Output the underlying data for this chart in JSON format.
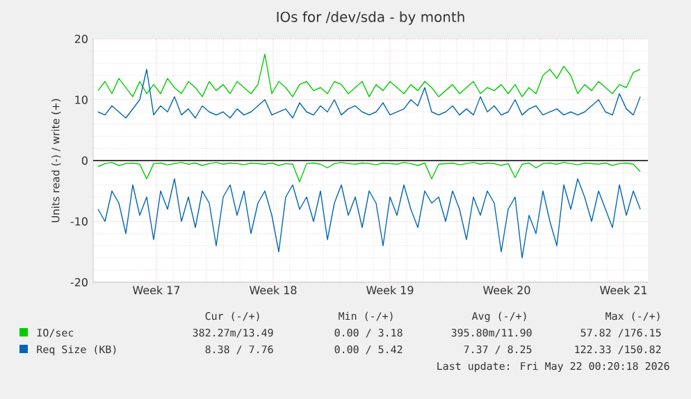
{
  "chart_data": {
    "type": "line",
    "title": "IOs for /dev/sda - by month",
    "ylabel": "Units read (-) / write (+)",
    "xlim": [
      "2026-04-16T05:00",
      "2026-05-19T11:00"
    ],
    "xticks": [
      {
        "value": "2026-04-20",
        "label": "Week 17"
      },
      {
        "value": "2026-04-27",
        "label": "Week 18"
      },
      {
        "value": "2026-05-04",
        "label": "Week 19"
      },
      {
        "value": "2026-05-11",
        "label": "Week 20"
      },
      {
        "value": "2026-05-18",
        "label": "Week 21"
      }
    ],
    "ylim": [
      -20,
      20
    ],
    "yticks": [
      -20,
      -10,
      0,
      10,
      20
    ],
    "grid": true,
    "legend": "bottom",
    "line_style": "solid",
    "x": [
      "2026-04-16T12:00",
      "2026-04-16T22:00",
      "2026-04-17T08:00",
      "2026-04-17T18:00",
      "2026-04-18T04:00",
      "2026-04-18T14:00",
      "2026-04-19T00:00",
      "2026-04-19T10:00",
      "2026-04-19T20:00",
      "2026-04-20T06:00",
      "2026-04-20T16:00",
      "2026-04-21T02:00",
      "2026-04-21T12:00",
      "2026-04-21T22:00",
      "2026-04-22T08:00",
      "2026-04-22T18:00",
      "2026-04-23T04:00",
      "2026-04-23T14:00",
      "2026-04-24T00:00",
      "2026-04-24T10:00",
      "2026-04-24T20:00",
      "2026-04-25T06:00",
      "2026-04-25T16:00",
      "2026-04-26T02:00",
      "2026-04-26T12:00",
      "2026-04-26T22:00",
      "2026-04-27T08:00",
      "2026-04-27T18:00",
      "2026-04-28T04:00",
      "2026-04-28T14:00",
      "2026-04-29T00:00",
      "2026-04-29T10:00",
      "2026-04-29T20:00",
      "2026-04-30T06:00",
      "2026-04-30T16:00",
      "2026-05-01T02:00",
      "2026-05-01T12:00",
      "2026-05-01T22:00",
      "2026-05-02T08:00",
      "2026-05-02T18:00",
      "2026-05-03T04:00",
      "2026-05-03T14:00",
      "2026-05-04T00:00",
      "2026-05-04T10:00",
      "2026-05-04T20:00",
      "2026-05-05T06:00",
      "2026-05-05T16:00",
      "2026-05-06T02:00",
      "2026-05-06T12:00",
      "2026-05-06T22:00",
      "2026-05-07T08:00",
      "2026-05-07T18:00",
      "2026-05-08T04:00",
      "2026-05-08T14:00",
      "2026-05-09T00:00",
      "2026-05-09T10:00",
      "2026-05-09T20:00",
      "2026-05-10T06:00",
      "2026-05-10T16:00",
      "2026-05-11T02:00",
      "2026-05-11T12:00",
      "2026-05-11T22:00",
      "2026-05-12T08:00",
      "2026-05-12T18:00",
      "2026-05-13T04:00",
      "2026-05-13T14:00",
      "2026-05-14T00:00",
      "2026-05-14T10:00",
      "2026-05-14T20:00",
      "2026-05-15T06:00",
      "2026-05-15T16:00",
      "2026-05-16T02:00",
      "2026-05-16T12:00",
      "2026-05-16T22:00",
      "2026-05-17T08:00",
      "2026-05-17T18:00",
      "2026-05-18T04:00",
      "2026-05-18T14:00",
      "2026-05-19T00:00"
    ],
    "series": [
      {
        "color": "#00cc00",
        "values": [
          -1,
          -0.5,
          -0.3,
          -0.8,
          -0.5,
          -0.4,
          -0.6,
          -3,
          -0.5,
          -0.4,
          -0.7,
          -0.5,
          -0.3,
          -0.6,
          -0.4,
          -0.8,
          -0.5,
          -0.3,
          -0.6,
          -0.4,
          -0.5,
          -0.7,
          -0.4,
          -0.5,
          -0.6,
          -0.4,
          -0.8,
          -0.5,
          -0.6,
          -3.5,
          -0.5,
          -0.4,
          -0.6,
          -1.2,
          -0.5,
          -0.3,
          -0.5,
          -0.6,
          -0.4,
          -0.5,
          -0.7,
          -0.4,
          -0.5,
          -0.6,
          -0.3,
          -0.5,
          -0.8,
          -0.4,
          -3,
          -0.6,
          -0.5,
          -0.4,
          -0.7,
          -0.5,
          -0.3,
          -0.6,
          -0.4,
          -0.5,
          -0.8,
          -0.5,
          -2.8,
          -0.6,
          -0.4,
          -1.2,
          -0.5,
          -0.4,
          -0.6,
          -0.3,
          -0.5,
          -0.7,
          -0.4,
          -0.5,
          -0.6,
          -0.4,
          -0.8,
          -0.5,
          -0.4,
          -0.6,
          -1.8
        ]
      },
      {
        "name": "IO/sec",
        "color": "#00cc00",
        "values": [
          11.5,
          13,
          11,
          13.5,
          12,
          10.5,
          13,
          11,
          12.5,
          11,
          13.5,
          12,
          11,
          13,
          12,
          10.5,
          13,
          11.5,
          12.5,
          11,
          13,
          12,
          11,
          12.5,
          17.5,
          11,
          13,
          12,
          10.5,
          12.5,
          13,
          11.5,
          12,
          11,
          13,
          12.5,
          11,
          12,
          13,
          10.5,
          12.5,
          11.5,
          13,
          12,
          11,
          12.5,
          11.5,
          13,
          12,
          10.5,
          11.5,
          12.5,
          11,
          12,
          13,
          11,
          12,
          11.5,
          12.5,
          11,
          12.5,
          10.5,
          12,
          11,
          14,
          15,
          13.5,
          15.5,
          14,
          11,
          12.5,
          11.5,
          13,
          12,
          11,
          12.5,
          12,
          14.5,
          15
        ]
      },
      {
        "color": "#0066b3",
        "values": [
          -8,
          -10,
          -5,
          -7,
          -12,
          -4,
          -9,
          -6,
          -13,
          -5,
          -8,
          -3,
          -10,
          -6,
          -11,
          -5,
          -7,
          -14,
          -6,
          -4,
          -9,
          -5,
          -12,
          -7,
          -5,
          -9,
          -15,
          -6,
          -4,
          -8,
          -6,
          -10,
          -5,
          -13,
          -7,
          -4,
          -9,
          -6,
          -11,
          -5,
          -7,
          -14,
          -6,
          -9,
          -4,
          -8,
          -11,
          -5,
          -7,
          -6,
          -10,
          -5,
          -8,
          -13,
          -6,
          -9,
          -5,
          -7,
          -15,
          -8,
          -6,
          -16,
          -9,
          -12,
          -5,
          -10,
          -14,
          -4,
          -8,
          -3,
          -6,
          -10,
          -5,
          -8,
          -11,
          -4,
          -9,
          -5,
          -8
        ]
      },
      {
        "name": "Req Size (KB)",
        "color": "#0066b3",
        "values": [
          8,
          7.5,
          9,
          8,
          7,
          8.5,
          10,
          15,
          7.5,
          9,
          8,
          10.5,
          7.5,
          8.5,
          7,
          9,
          8,
          7.5,
          8,
          7,
          8.5,
          7.5,
          8,
          9,
          10,
          7.5,
          8,
          8.5,
          7,
          9.5,
          8,
          7.5,
          9,
          8,
          10,
          7.5,
          8.5,
          9,
          8,
          7.5,
          8,
          9.5,
          7.5,
          8,
          8.5,
          10,
          9,
          12,
          8,
          7.5,
          8,
          9,
          7.5,
          8.5,
          7.5,
          10.5,
          8,
          9,
          7.5,
          8,
          10,
          7.5,
          8.5,
          9,
          7.5,
          8,
          8.5,
          7.5,
          8,
          7.5,
          8,
          9,
          10,
          8,
          7.5,
          11,
          8.5,
          7.5,
          10.5
        ]
      }
    ],
    "ref_lines": [
      {
        "axis": "y",
        "value": 0,
        "color": "#000000"
      }
    ],
    "annotations": [
      "Cur (-/+)",
      "Min (-/+)",
      "Avg (-/+)",
      "Max (-/+)",
      "382.27m/13.49",
      "0.00 / 3.18",
      "395.80m/11.90",
      "57.82 /176.15",
      "8.38 / 7.76",
      "0.00 / 5.42",
      "7.37 / 8.25",
      "122.33 /150.82",
      "Last update: Fri May 22 00:20:18 2026"
    ]
  }
}
